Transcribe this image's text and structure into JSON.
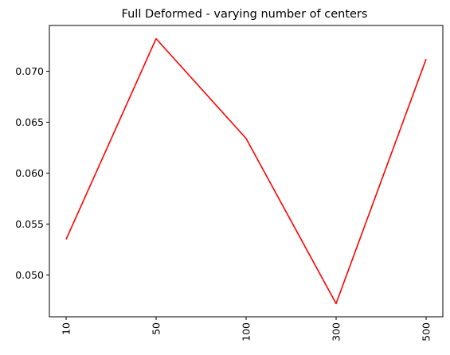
{
  "chart_data": {
    "type": "line",
    "title": "Full Deformed - varying number of centers",
    "xlabel": "",
    "ylabel": "",
    "categories": [
      "10",
      "50",
      "100",
      "300",
      "500"
    ],
    "series": [
      {
        "values": [
          0.0535,
          0.0732,
          0.0634,
          0.0472,
          0.0712
        ],
        "color": "#ff0000"
      }
    ],
    "ylim": [
      0.0459,
      0.0745
    ],
    "yticks": [
      0.05,
      0.055,
      0.06,
      0.065,
      0.07
    ],
    "ytick_labels": [
      "0.050",
      "0.055",
      "0.060",
      "0.065",
      "0.070"
    ],
    "grid": false,
    "x_tick_rotation": "vertical"
  }
}
